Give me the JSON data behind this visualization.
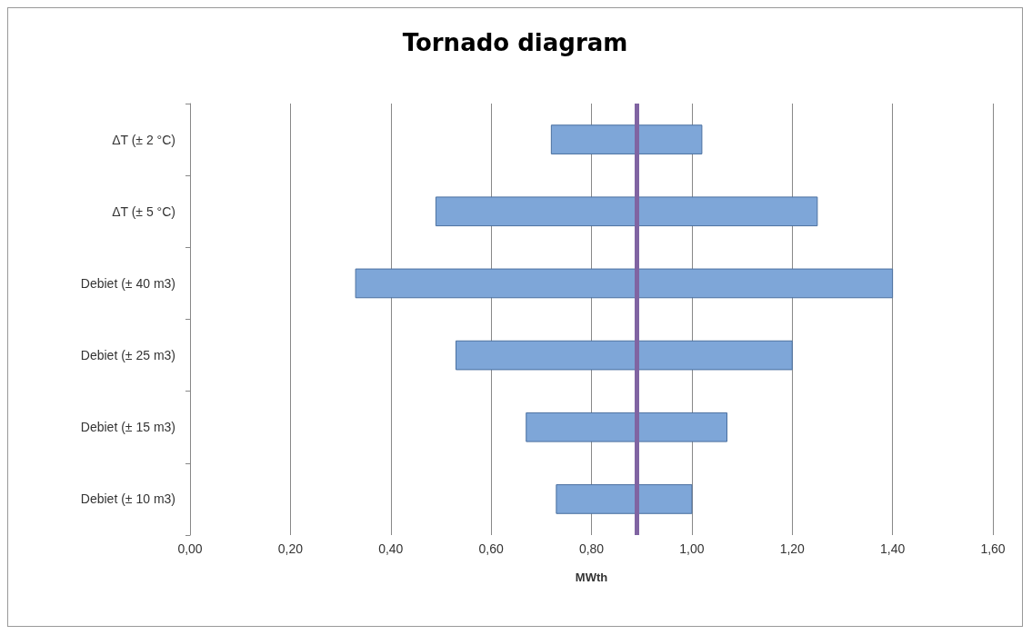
{
  "chart_data": {
    "type": "bar",
    "orientation": "horizontal",
    "title": "Tornado diagram",
    "xlabel": "MWth",
    "categories": [
      "ΔT (± 2 °C)",
      "ΔT (± 5 °C)",
      "Debiet (± 40 m3)",
      "Debiet (± 25 m3)",
      "Debiet (± 15 m3)",
      "Debiet (± 10 m3)"
    ],
    "base": [
      0.72,
      0.49,
      0.33,
      0.53,
      0.67,
      0.73
    ],
    "values": [
      0.3,
      0.76,
      1.07,
      0.67,
      0.4,
      0.27
    ],
    "color": "#7ea6d8",
    "xlim": [
      0,
      1.6
    ],
    "xticks": [
      {
        "value": 0,
        "label": "0,00"
      },
      {
        "value": 0.2,
        "label": "0,20"
      },
      {
        "value": 0.4,
        "label": "0,40"
      },
      {
        "value": 0.6,
        "label": "0,60"
      },
      {
        "value": 0.8,
        "label": "0,80"
      },
      {
        "value": 1.0,
        "label": "1,00"
      },
      {
        "value": 1.2,
        "label": "1,20"
      },
      {
        "value": 1.4,
        "label": "1,40"
      },
      {
        "value": 1.6,
        "label": "1,60"
      }
    ],
    "grid": "x",
    "ref_lines": [
      {
        "axis": "x",
        "value": 0.89,
        "color": "#8064a2"
      }
    ]
  }
}
